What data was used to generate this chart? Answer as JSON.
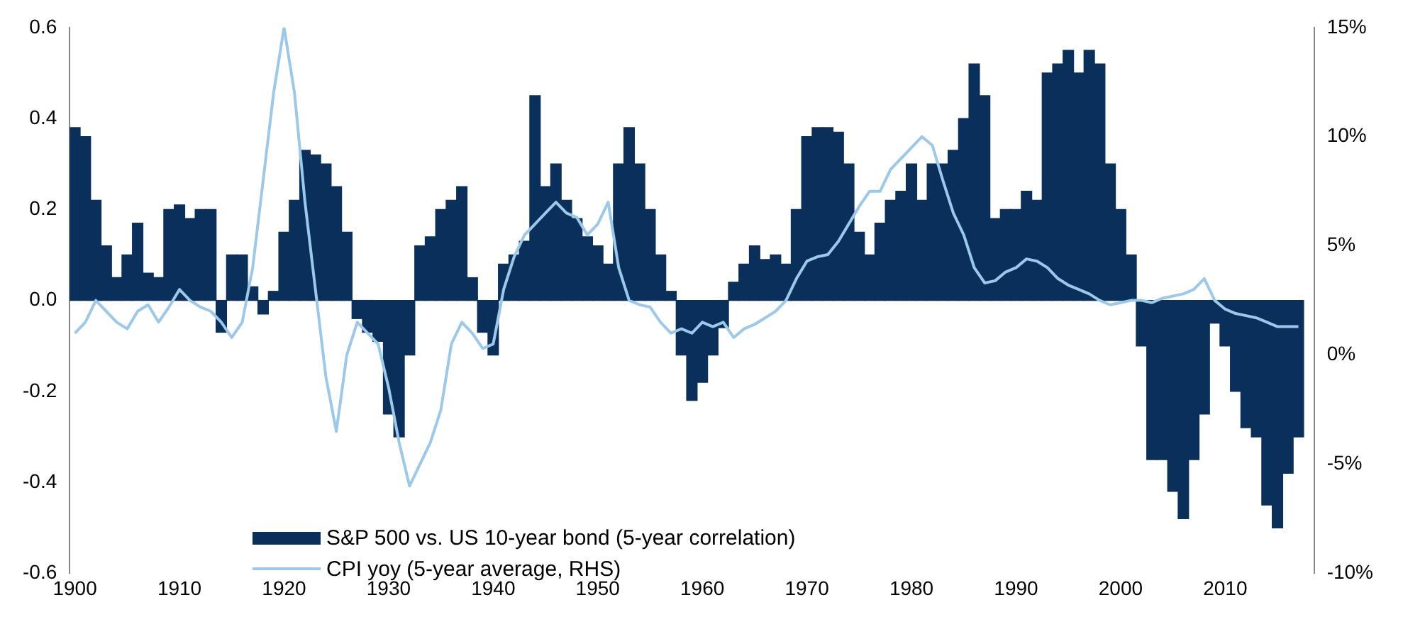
{
  "chart_data": {
    "type": "bar",
    "x": [
      1900,
      1901,
      1902,
      1903,
      1904,
      1905,
      1906,
      1907,
      1908,
      1909,
      1910,
      1911,
      1912,
      1913,
      1914,
      1915,
      1916,
      1917,
      1918,
      1919,
      1920,
      1921,
      1922,
      1923,
      1924,
      1925,
      1926,
      1927,
      1928,
      1929,
      1930,
      1931,
      1932,
      1933,
      1934,
      1935,
      1936,
      1937,
      1938,
      1939,
      1940,
      1941,
      1942,
      1943,
      1944,
      1945,
      1946,
      1947,
      1948,
      1949,
      1950,
      1951,
      1952,
      1953,
      1954,
      1955,
      1956,
      1957,
      1958,
      1959,
      1960,
      1961,
      1962,
      1963,
      1964,
      1965,
      1966,
      1967,
      1968,
      1969,
      1970,
      1971,
      1972,
      1973,
      1974,
      1975,
      1976,
      1977,
      1978,
      1979,
      1980,
      1981,
      1982,
      1983,
      1984,
      1985,
      1986,
      1987,
      1988,
      1989,
      1990,
      1991,
      1992,
      1993,
      1994,
      1995,
      1996,
      1997,
      1998,
      1999,
      2000,
      2001,
      2002,
      2003,
      2004,
      2005,
      2006,
      2007,
      2008,
      2009,
      2010,
      2011,
      2012,
      2013,
      2014,
      2015,
      2016,
      2017
    ],
    "series": [
      {
        "name": "S&P 500 vs. US 10-year bond (5-year correlation)",
        "color": "#0b2f5b",
        "values": [
          0.38,
          0.36,
          0.22,
          0.12,
          0.05,
          0.1,
          0.17,
          0.06,
          0.05,
          0.2,
          0.21,
          0.18,
          0.2,
          0.2,
          -0.07,
          0.1,
          0.1,
          0.03,
          -0.03,
          0.02,
          0.15,
          0.22,
          0.33,
          0.32,
          0.3,
          0.25,
          0.15,
          -0.04,
          -0.07,
          -0.09,
          -0.25,
          -0.3,
          -0.12,
          0.12,
          0.14,
          0.2,
          0.22,
          0.25,
          0.05,
          -0.07,
          -0.12,
          0.08,
          0.1,
          0.13,
          0.45,
          0.25,
          0.3,
          0.22,
          0.18,
          0.14,
          0.12,
          0.08,
          0.3,
          0.38,
          0.3,
          0.2,
          0.1,
          0.02,
          -0.12,
          -0.22,
          -0.18,
          -0.12,
          -0.06,
          0.04,
          0.08,
          0.12,
          0.09,
          0.1,
          0.08,
          0.2,
          0.36,
          0.38,
          0.38,
          0.37,
          0.3,
          0.15,
          0.1,
          0.17,
          0.22,
          0.24,
          0.3,
          0.22,
          0.3,
          0.3,
          0.33,
          0.4,
          0.52,
          0.45,
          0.18,
          0.2,
          0.2,
          0.24,
          0.22,
          0.5,
          0.52,
          0.55,
          0.5,
          0.55,
          0.52,
          0.3,
          0.2,
          0.1,
          -0.1,
          -0.35,
          -0.35,
          -0.42,
          -0.48,
          -0.35,
          -0.25,
          -0.05,
          -0.1,
          -0.2,
          -0.28,
          -0.3,
          -0.45,
          -0.5,
          -0.38,
          -0.3
        ]
      },
      {
        "name": "CPI yoy (5-year average, RHS)",
        "type": "line",
        "axis": "y2",
        "color": "#9cc8ea",
        "values": [
          1.0,
          1.5,
          2.5,
          2.0,
          1.5,
          1.2,
          2,
          2.3,
          1.5,
          2.2,
          3.0,
          2.5,
          2.2,
          2.0,
          1.5,
          0.8,
          1.5,
          4,
          8,
          12,
          15,
          12,
          7,
          3,
          -1,
          -3.5,
          0,
          1.5,
          1,
          0.5,
          -1.5,
          -4,
          -6,
          -5,
          -4,
          -2.5,
          0.5,
          1.5,
          1,
          0.3,
          0.5,
          3,
          4.5,
          5.5,
          6,
          6.5,
          7,
          6.5,
          6.3,
          5.5,
          6,
          7,
          4,
          2.5,
          2.3,
          2.2,
          1.5,
          1.0,
          1.2,
          1.0,
          1.5,
          1.3,
          1.5,
          0.8,
          1.2,
          1.4,
          1.7,
          2,
          2.5,
          3.5,
          4.3,
          4.5,
          4.6,
          5.2,
          6,
          6.8,
          7.5,
          7.5,
          8.5,
          9,
          9.5,
          10,
          9.6,
          8,
          6.5,
          5.5,
          4,
          3.3,
          3.4,
          3.8,
          4,
          4.4,
          4.3,
          4,
          3.5,
          3.2,
          3,
          2.8,
          2.5,
          2.3,
          2.4,
          2.5,
          2.5,
          2.4,
          2.6,
          2.7,
          2.8,
          3,
          3.5,
          2.5,
          2.1,
          1.9,
          1.8,
          1.7,
          1.5,
          1.3,
          1.3,
          1.3
        ]
      }
    ],
    "xlim": [
      1899.5,
      2018.5
    ],
    "xticks": [
      1900,
      1910,
      1920,
      1930,
      1940,
      1950,
      1960,
      1970,
      1980,
      1990,
      2000,
      2010
    ],
    "ylim": [
      -0.6,
      0.6
    ],
    "yticks": [
      {
        "value": -0.6,
        "label": "-0.6"
      },
      {
        "value": -0.4,
        "label": "-0.4"
      },
      {
        "value": -0.2,
        "label": "-0.2"
      },
      {
        "value": 0,
        "label": "0.0"
      },
      {
        "value": 0.2,
        "label": "0.2"
      },
      {
        "value": 0.4,
        "label": "0.4"
      },
      {
        "value": 0.6,
        "label": "0.6"
      }
    ],
    "y2lim": [
      -10,
      15
    ],
    "y2ticks": [
      {
        "value": -10,
        "label": "-10%"
      },
      {
        "value": -5,
        "label": "-5%"
      },
      {
        "value": 0,
        "label": "0%"
      },
      {
        "value": 5,
        "label": "5%"
      },
      {
        "value": 10,
        "label": "10%"
      },
      {
        "value": 15,
        "label": "15%"
      }
    ],
    "grid": false,
    "legend": "bottom",
    "marker": "none",
    "line_style": "solid"
  }
}
